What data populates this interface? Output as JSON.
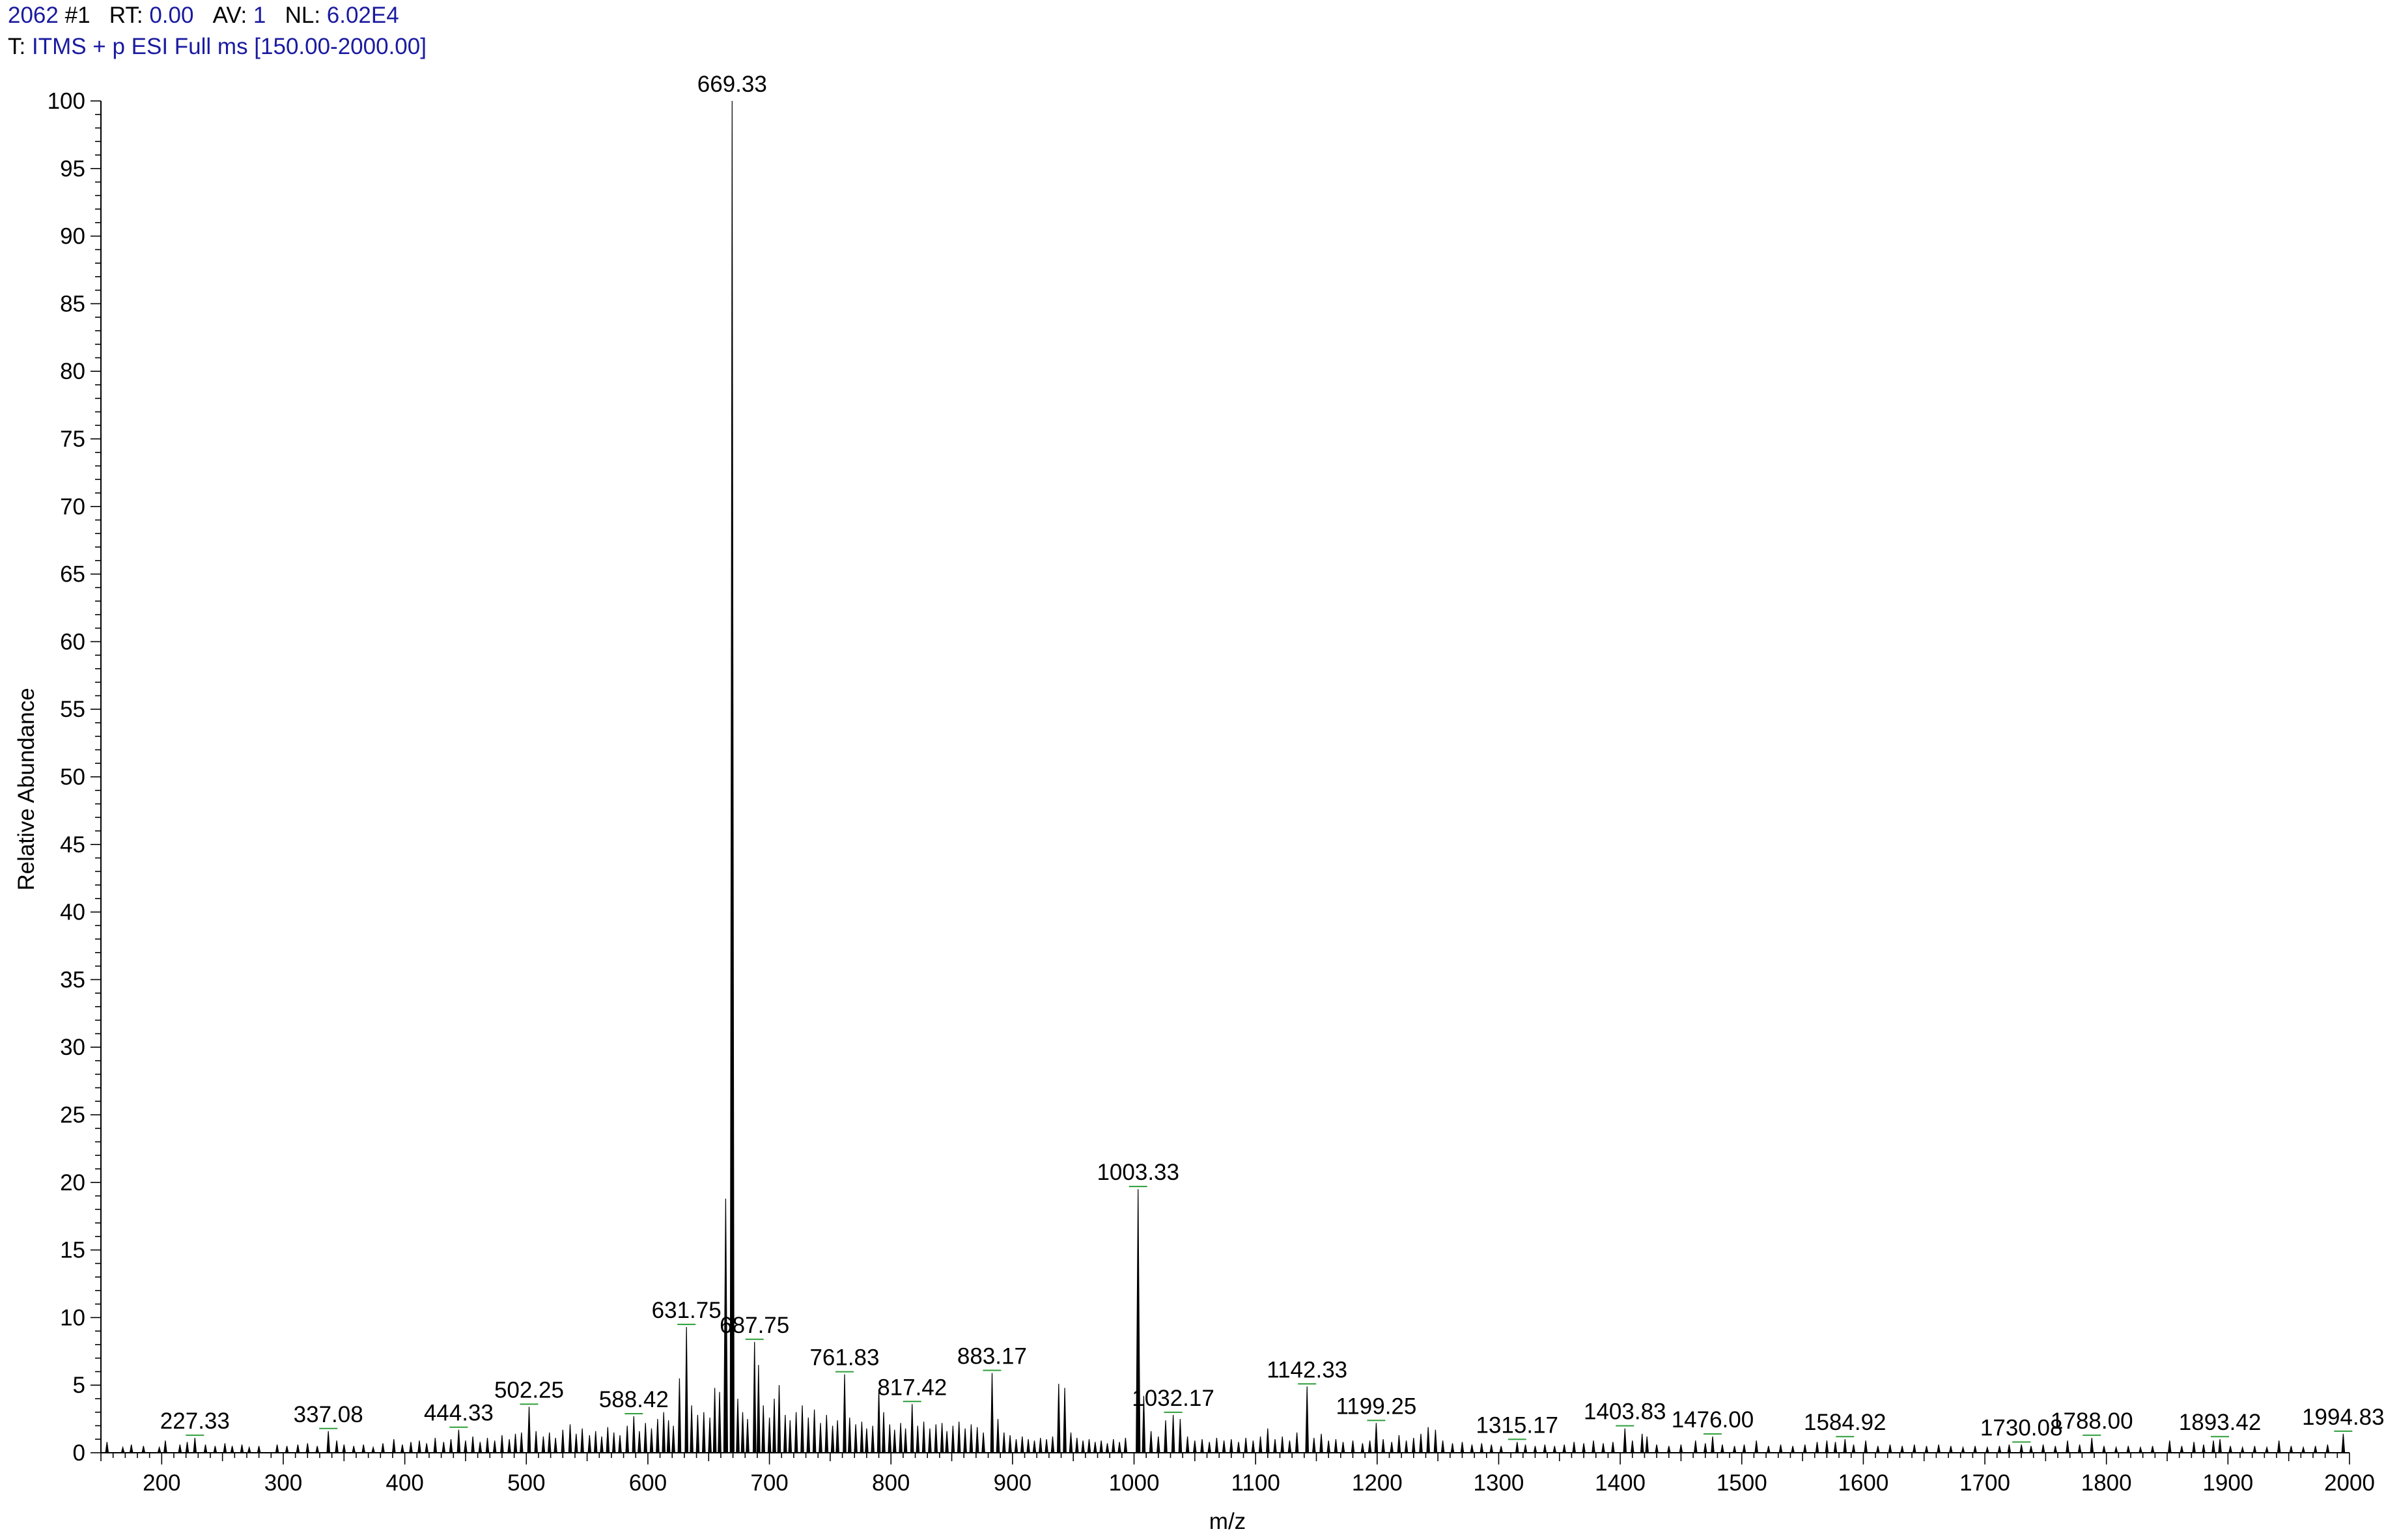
{
  "header": {
    "scan": "2062",
    "scan_num_label": "#1",
    "rt_label": "RT:",
    "rt_value": "0.00",
    "av_label": "AV:",
    "av_value": "1",
    "nl_label": "NL:",
    "nl_value": "6.02E4",
    "filter_label": "T:",
    "filter_value": "ITMS + p ESI Full ms [150.00-2000.00]"
  },
  "chart_data": {
    "type": "bar",
    "title": "",
    "xlabel": "m/z",
    "ylabel": "Relative Abundance",
    "xlim": [
      150,
      2000
    ],
    "ylim": [
      0,
      100
    ],
    "xticks": [
      200,
      300,
      400,
      500,
      600,
      700,
      800,
      900,
      1000,
      1100,
      1200,
      1300,
      1400,
      1500,
      1600,
      1700,
      1800,
      1900,
      2000
    ],
    "yticks": [
      0,
      5,
      10,
      15,
      20,
      25,
      30,
      35,
      40,
      45,
      50,
      55,
      60,
      65,
      70,
      75,
      80,
      85,
      90,
      95,
      100
    ],
    "grid": false,
    "colors": {
      "spectrum": "#000000",
      "label_marker": "#2e9e3a",
      "header_value": "#1a1aa0"
    },
    "labeled_peaks": [
      {
        "mz": 227.33,
        "label": "227.33",
        "y": 1.1
      },
      {
        "mz": 337.08,
        "label": "337.08",
        "y": 1.6
      },
      {
        "mz": 444.33,
        "label": "444.33",
        "y": 1.7
      },
      {
        "mz": 502.25,
        "label": "502.25",
        "y": 3.4
      },
      {
        "mz": 588.42,
        "label": "588.42",
        "y": 2.7
      },
      {
        "mz": 631.75,
        "label": "631.75",
        "y": 9.3
      },
      {
        "mz": 669.33,
        "label": "669.33",
        "y": 100
      },
      {
        "mz": 687.75,
        "label": "687.75",
        "y": 8.2
      },
      {
        "mz": 761.83,
        "label": "761.83",
        "y": 5.8
      },
      {
        "mz": 817.42,
        "label": "817.42",
        "y": 3.6
      },
      {
        "mz": 883.17,
        "label": "883.17",
        "y": 5.9
      },
      {
        "mz": 1003.33,
        "label": "1003.33",
        "y": 19.5
      },
      {
        "mz": 1032.17,
        "label": "1032.17",
        "y": 2.8
      },
      {
        "mz": 1142.33,
        "label": "1142.33",
        "y": 4.9
      },
      {
        "mz": 1199.25,
        "label": "1199.25",
        "y": 2.2
      },
      {
        "mz": 1315.17,
        "label": "1315.17",
        "y": 0.8
      },
      {
        "mz": 1403.83,
        "label": "1403.83",
        "y": 1.8
      },
      {
        "mz": 1476.0,
        "label": "1476.00",
        "y": 1.2
      },
      {
        "mz": 1584.92,
        "label": "1584.92",
        "y": 1.0
      },
      {
        "mz": 1730.08,
        "label": "1730.08",
        "y": 0.6
      },
      {
        "mz": 1788.0,
        "label": "1788.00",
        "y": 1.1
      },
      {
        "mz": 1893.42,
        "label": "1893.42",
        "y": 1.0
      },
      {
        "mz": 1994.83,
        "label": "1994.83",
        "y": 1.4
      }
    ],
    "peaks": [
      [
        155,
        0.8
      ],
      [
        168,
        0.4
      ],
      [
        175,
        0.6
      ],
      [
        185,
        0.5
      ],
      [
        198,
        0.4
      ],
      [
        203,
        0.9
      ],
      [
        215,
        0.6
      ],
      [
        221,
        0.8
      ],
      [
        227.33,
        1.1
      ],
      [
        236,
        0.6
      ],
      [
        244,
        0.5
      ],
      [
        252,
        0.7
      ],
      [
        258,
        0.5
      ],
      [
        266,
        0.6
      ],
      [
        272,
        0.4
      ],
      [
        280,
        0.5
      ],
      [
        295,
        0.6
      ],
      [
        303,
        0.5
      ],
      [
        312,
        0.6
      ],
      [
        320,
        0.7
      ],
      [
        328,
        0.5
      ],
      [
        337.08,
        1.6
      ],
      [
        344,
        0.9
      ],
      [
        350,
        0.6
      ],
      [
        358,
        0.5
      ],
      [
        366,
        0.6
      ],
      [
        374,
        0.4
      ],
      [
        382,
        0.7
      ],
      [
        391,
        1.0
      ],
      [
        398,
        0.6
      ],
      [
        405,
        0.8
      ],
      [
        412,
        0.9
      ],
      [
        418,
        0.7
      ],
      [
        425,
        1.1
      ],
      [
        432,
        0.8
      ],
      [
        438,
        1.0
      ],
      [
        444.33,
        1.7
      ],
      [
        450,
        0.9
      ],
      [
        456,
        1.2
      ],
      [
        462,
        0.8
      ],
      [
        468,
        1.1
      ],
      [
        474,
        0.9
      ],
      [
        480,
        1.3
      ],
      [
        486,
        1.0
      ],
      [
        491,
        1.4
      ],
      [
        496,
        1.5
      ],
      [
        502.25,
        3.4
      ],
      [
        508,
        1.6
      ],
      [
        514,
        1.2
      ],
      [
        519,
        1.5
      ],
      [
        524,
        1.1
      ],
      [
        530,
        1.7
      ],
      [
        536,
        2.1
      ],
      [
        541,
        1.4
      ],
      [
        546,
        1.8
      ],
      [
        552,
        1.3
      ],
      [
        557,
        1.6
      ],
      [
        562,
        1.2
      ],
      [
        567,
        1.9
      ],
      [
        572,
        1.5
      ],
      [
        577,
        1.3
      ],
      [
        583,
        2.0
      ],
      [
        588.42,
        2.7
      ],
      [
        593,
        1.6
      ],
      [
        598,
        2.2
      ],
      [
        603,
        1.8
      ],
      [
        608,
        2.5
      ],
      [
        613,
        3.0
      ],
      [
        617,
        2.4
      ],
      [
        621,
        2.0
      ],
      [
        626,
        5.5
      ],
      [
        631.75,
        9.3
      ],
      [
        636,
        3.5
      ],
      [
        641,
        2.8
      ],
      [
        646,
        3.0
      ],
      [
        651,
        2.6
      ],
      [
        655,
        4.8
      ],
      [
        659,
        4.5
      ],
      [
        664,
        18.8
      ],
      [
        669.33,
        100
      ],
      [
        674,
        4.0
      ],
      [
        678,
        3.0
      ],
      [
        682,
        2.5
      ],
      [
        687.75,
        8.2
      ],
      [
        691,
        6.5
      ],
      [
        695,
        3.5
      ],
      [
        700,
        2.6
      ],
      [
        704,
        4.0
      ],
      [
        708,
        5.0
      ],
      [
        713,
        2.8
      ],
      [
        717,
        2.4
      ],
      [
        722,
        3.0
      ],
      [
        727,
        3.5
      ],
      [
        732,
        2.6
      ],
      [
        737,
        3.2
      ],
      [
        742,
        2.2
      ],
      [
        747,
        2.8
      ],
      [
        752,
        2.0
      ],
      [
        756,
        2.4
      ],
      [
        761.83,
        5.8
      ],
      [
        766,
        2.6
      ],
      [
        771,
        2.1
      ],
      [
        776,
        2.3
      ],
      [
        780,
        1.8
      ],
      [
        785,
        2.0
      ],
      [
        790,
        4.7
      ],
      [
        794,
        3.0
      ],
      [
        799,
        2.1
      ],
      [
        803,
        1.7
      ],
      [
        808,
        2.2
      ],
      [
        812,
        1.8
      ],
      [
        817.42,
        3.6
      ],
      [
        822,
        2.0
      ],
      [
        827,
        2.3
      ],
      [
        832,
        1.8
      ],
      [
        837,
        2.1
      ],
      [
        842,
        2.2
      ],
      [
        846,
        1.6
      ],
      [
        851,
        2.0
      ],
      [
        856,
        2.3
      ],
      [
        861,
        1.8
      ],
      [
        866,
        2.1
      ],
      [
        871,
        1.9
      ],
      [
        876,
        1.5
      ],
      [
        883.17,
        5.9
      ],
      [
        888,
        2.5
      ],
      [
        893,
        1.5
      ],
      [
        898,
        1.3
      ],
      [
        903,
        1.0
      ],
      [
        908,
        1.2
      ],
      [
        913,
        1.0
      ],
      [
        918,
        0.9
      ],
      [
        923,
        1.1
      ],
      [
        928,
        1.0
      ],
      [
        933,
        1.2
      ],
      [
        938,
        5.1
      ],
      [
        943,
        4.8
      ],
      [
        948,
        1.5
      ],
      [
        953,
        1.1
      ],
      [
        958,
        0.9
      ],
      [
        963,
        1.0
      ],
      [
        968,
        0.8
      ],
      [
        973,
        0.9
      ],
      [
        978,
        0.7
      ],
      [
        983,
        1.0
      ],
      [
        988,
        0.8
      ],
      [
        993,
        1.1
      ],
      [
        1003.33,
        19.5
      ],
      [
        1008,
        4.2
      ],
      [
        1014,
        1.6
      ],
      [
        1020,
        1.2
      ],
      [
        1026,
        2.4
      ],
      [
        1032.17,
        2.8
      ],
      [
        1038,
        2.5
      ],
      [
        1044,
        1.2
      ],
      [
        1050,
        0.9
      ],
      [
        1056,
        1.0
      ],
      [
        1062,
        0.8
      ],
      [
        1068,
        1.1
      ],
      [
        1074,
        0.9
      ],
      [
        1080,
        1.0
      ],
      [
        1086,
        0.8
      ],
      [
        1092,
        1.1
      ],
      [
        1098,
        0.9
      ],
      [
        1104,
        1.2
      ],
      [
        1110,
        1.8
      ],
      [
        1116,
        1.0
      ],
      [
        1122,
        1.2
      ],
      [
        1128,
        0.9
      ],
      [
        1134,
        1.5
      ],
      [
        1142.33,
        4.9
      ],
      [
        1148,
        1.1
      ],
      [
        1154,
        1.4
      ],
      [
        1160,
        0.9
      ],
      [
        1166,
        1.0
      ],
      [
        1172,
        0.8
      ],
      [
        1180,
        0.9
      ],
      [
        1188,
        0.7
      ],
      [
        1194,
        0.9
      ],
      [
        1199.25,
        2.2
      ],
      [
        1205,
        1.0
      ],
      [
        1212,
        0.8
      ],
      [
        1218,
        1.3
      ],
      [
        1224,
        0.9
      ],
      [
        1230,
        1.1
      ],
      [
        1236,
        1.4
      ],
      [
        1242,
        1.9
      ],
      [
        1248,
        1.7
      ],
      [
        1254,
        0.9
      ],
      [
        1262,
        0.7
      ],
      [
        1270,
        0.8
      ],
      [
        1278,
        0.6
      ],
      [
        1286,
        0.7
      ],
      [
        1294,
        0.6
      ],
      [
        1302,
        0.5
      ],
      [
        1315.17,
        0.8
      ],
      [
        1322,
        0.6
      ],
      [
        1330,
        0.5
      ],
      [
        1338,
        0.6
      ],
      [
        1346,
        0.5
      ],
      [
        1354,
        0.6
      ],
      [
        1362,
        0.8
      ],
      [
        1370,
        0.7
      ],
      [
        1378,
        0.9
      ],
      [
        1386,
        0.7
      ],
      [
        1394,
        0.8
      ],
      [
        1403.83,
        1.8
      ],
      [
        1410,
        0.9
      ],
      [
        1418,
        1.4
      ],
      [
        1422,
        1.2
      ],
      [
        1430,
        0.6
      ],
      [
        1440,
        0.5
      ],
      [
        1450,
        0.6
      ],
      [
        1462,
        0.9
      ],
      [
        1470,
        0.7
      ],
      [
        1476.0,
        1.2
      ],
      [
        1484,
        0.6
      ],
      [
        1494,
        0.5
      ],
      [
        1502,
        0.6
      ],
      [
        1512,
        0.9
      ],
      [
        1522,
        0.5
      ],
      [
        1532,
        0.6
      ],
      [
        1542,
        0.5
      ],
      [
        1552,
        0.6
      ],
      [
        1562,
        0.8
      ],
      [
        1570,
        0.9
      ],
      [
        1577,
        0.8
      ],
      [
        1584.92,
        1.0
      ],
      [
        1592,
        0.6
      ],
      [
        1602,
        0.9
      ],
      [
        1612,
        0.5
      ],
      [
        1622,
        0.6
      ],
      [
        1632,
        0.5
      ],
      [
        1642,
        0.6
      ],
      [
        1652,
        0.5
      ],
      [
        1662,
        0.6
      ],
      [
        1672,
        0.5
      ],
      [
        1682,
        0.4
      ],
      [
        1692,
        0.5
      ],
      [
        1702,
        0.4
      ],
      [
        1712,
        0.5
      ],
      [
        1720,
        0.6
      ],
      [
        1730.08,
        0.6
      ],
      [
        1738,
        0.5
      ],
      [
        1748,
        0.6
      ],
      [
        1758,
        0.5
      ],
      [
        1768,
        0.9
      ],
      [
        1778,
        0.6
      ],
      [
        1788.0,
        1.1
      ],
      [
        1798,
        0.5
      ],
      [
        1808,
        0.4
      ],
      [
        1818,
        0.5
      ],
      [
        1828,
        0.4
      ],
      [
        1838,
        0.5
      ],
      [
        1852,
        0.9
      ],
      [
        1862,
        0.5
      ],
      [
        1872,
        0.8
      ],
      [
        1880,
        0.6
      ],
      [
        1888,
        0.9
      ],
      [
        1893.42,
        1.0
      ],
      [
        1902,
        0.5
      ],
      [
        1912,
        0.4
      ],
      [
        1922,
        0.5
      ],
      [
        1932,
        0.4
      ],
      [
        1942,
        0.9
      ],
      [
        1952,
        0.5
      ],
      [
        1962,
        0.4
      ],
      [
        1972,
        0.5
      ],
      [
        1982,
        0.6
      ],
      [
        1994.83,
        1.4
      ]
    ]
  }
}
